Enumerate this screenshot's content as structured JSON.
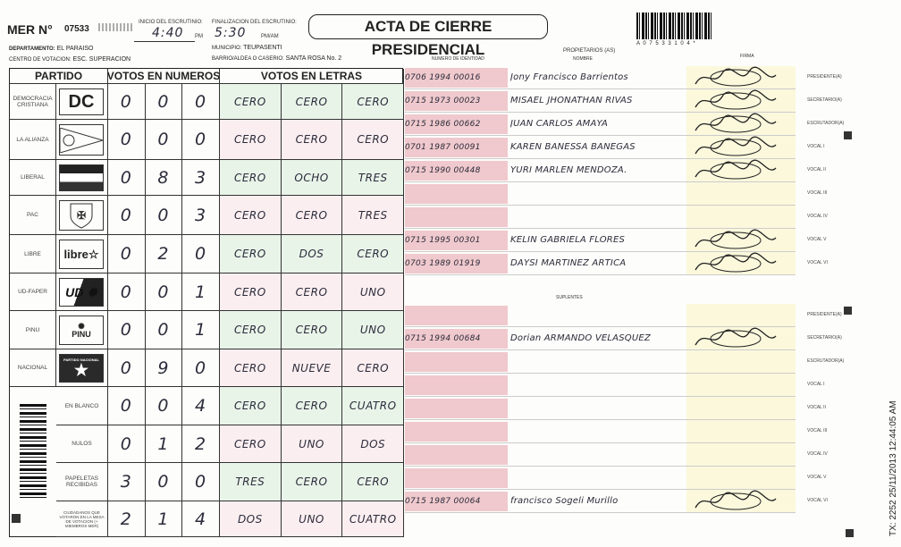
{
  "header": {
    "mer_label": "MER N°",
    "mer_number": "07533",
    "inicio_label": "INICIO DEL ESCRUTINIO:",
    "inicio_value": "4:40",
    "inicio_suffix": "PM",
    "fin_label": "FINALIZACION DEL ESCRUTINIO:",
    "fin_value": "5:30",
    "fin_suffix": "PM/AM",
    "title": "ACTA DE CIERRE PRESIDENCIAL",
    "barcode_text": "A 0 7 5 3 3 1 0 4 *",
    "departamento_label": "DEPARTAMENTO:",
    "departamento": "EL PARAISO",
    "municipio_label": "MUNICIPIO:",
    "municipio": "TEUPASENTI",
    "centro_label": "CENTRO DE VOTACION:",
    "centro": "ESC. SUPERACION",
    "barrio_label": "BARRIO/ALDEA O CASERIO:",
    "barrio": "SANTA ROSA No. 2"
  },
  "votes_table": {
    "headers": [
      "PARTIDO",
      "VOTOS EN NUMEROS",
      "VOTOS EN LETRAS"
    ],
    "rows": [
      {
        "party": "DEMOCRACIA CRISTIANA",
        "logo": "DC",
        "numbers": [
          "0",
          "0",
          "0"
        ],
        "letters": [
          "CERO",
          "CERO",
          "CERO"
        ]
      },
      {
        "party": "LA ALIANZA",
        "logo": "alianza-flag",
        "numbers": [
          "0",
          "0",
          "0"
        ],
        "letters": [
          "CERO",
          "CERO",
          "CERO"
        ]
      },
      {
        "party": "LIBERAL",
        "logo": "liberal-flag",
        "numbers": [
          "0",
          "8",
          "3"
        ],
        "letters": [
          "CERO",
          "OCHO",
          "TRES"
        ]
      },
      {
        "party": "PAC",
        "logo": "pac-shield",
        "numbers": [
          "0",
          "0",
          "3"
        ],
        "letters": [
          "CERO",
          "CERO",
          "TRES"
        ]
      },
      {
        "party": "LIBRE",
        "logo": "libre",
        "numbers": [
          "0",
          "2",
          "0"
        ],
        "letters": [
          "CERO",
          "DOS",
          "CERO"
        ]
      },
      {
        "party": "UD-FAPER",
        "logo": "UD",
        "numbers": [
          "0",
          "0",
          "1"
        ],
        "letters": [
          "CERO",
          "CERO",
          "UNO"
        ]
      },
      {
        "party": "PINU",
        "logo": "PINU",
        "numbers": [
          "0",
          "0",
          "1"
        ],
        "letters": [
          "CERO",
          "CERO",
          "UNO"
        ]
      },
      {
        "party": "NACIONAL",
        "logo": "PARTIDO NACIONAL",
        "numbers": [
          "0",
          "9",
          "0"
        ],
        "letters": [
          "CERO",
          "NUEVE",
          "CERO"
        ]
      },
      {
        "party": "EN BLANCO",
        "numbers": [
          "0",
          "0",
          "4"
        ],
        "letters": [
          "CERO",
          "CERO",
          "CUATRO"
        ]
      },
      {
        "party": "NULOS",
        "numbers": [
          "0",
          "1",
          "2"
        ],
        "letters": [
          "CERO",
          "UNO",
          "DOS"
        ]
      },
      {
        "party": "PAPELETAS RECIBIDAS",
        "numbers": [
          "3",
          "0",
          "0"
        ],
        "letters": [
          "TRES",
          "CERO",
          "CERO"
        ]
      },
      {
        "party": "CIUDADANOS QUE VOTARON EN LA MESA DE VOTACION (+ MIEMBROS MER)",
        "numbers": [
          "2",
          "1",
          "4"
        ],
        "letters": [
          "DOS",
          "UNO",
          "CUATRO"
        ]
      }
    ]
  },
  "members": {
    "id_header": "NUMERO DE IDENTIDAD",
    "owners_header": "PROPIETARIOS (AS)",
    "name_header": "NOMBRE",
    "sign_header": "FIRMA",
    "suplentes_label": "SUPLENTES",
    "roles": [
      "PRESIDENTE(A)",
      "SECRETARIO(A)",
      "ESCRUTADOR(A)",
      "VOCAL I",
      "VOCAL II",
      "VOCAL III",
      "VOCAL IV",
      "VOCAL V",
      "VOCAL VI"
    ],
    "propietarios": [
      {
        "id": "0706 1994 00016",
        "name": "Jony Francisco Barrientos",
        "signed": true
      },
      {
        "id": "0715 1973 00023",
        "name": "MISAEL JHONATHAN RIVAS",
        "signed": true
      },
      {
        "id": "0715 1986 00662",
        "name": "JUAN CARLOS AMAYA",
        "signed": true
      },
      {
        "id": "0701 1987 00091",
        "name": "KAREN BANESSA BANEGAS",
        "signed": true
      },
      {
        "id": "0715 1990 00448",
        "name": "YURI MARLEN MENDOZA.",
        "signed": true
      },
      {
        "id": "",
        "name": "",
        "signed": false
      },
      {
        "id": "",
        "name": "",
        "signed": false
      },
      {
        "id": "0715 1995 00301",
        "name": "KELIN GABRIELA FLORES",
        "signed": true
      },
      {
        "id": "0703 1989 01919",
        "name": "DAYSI MARTINEZ ARTICA",
        "signed": true
      }
    ],
    "suplentes": [
      {
        "id": "",
        "name": "",
        "signed": false
      },
      {
        "id": "0715 1994 00684",
        "name": "Dorian ARMANDO VELASQUEZ",
        "signed": true
      },
      {
        "id": "",
        "name": "",
        "signed": false
      },
      {
        "id": "",
        "name": "",
        "signed": false
      },
      {
        "id": "",
        "name": "",
        "signed": false
      },
      {
        "id": "",
        "name": "",
        "signed": false
      },
      {
        "id": "",
        "name": "",
        "signed": false
      },
      {
        "id": "",
        "name": "",
        "signed": false
      },
      {
        "id": "0715 1987 00064",
        "name": "francisco Sogeli Murillo",
        "signed": true
      }
    ]
  },
  "stamp": "TX: 2252 25/11/2013 12:44:05 AM",
  "colors": {
    "id_fill": "#efc9cd",
    "sign_fill": "#fbf8dc",
    "row_tint": "#e9f4e9",
    "ink": "#2b2b3a"
  }
}
